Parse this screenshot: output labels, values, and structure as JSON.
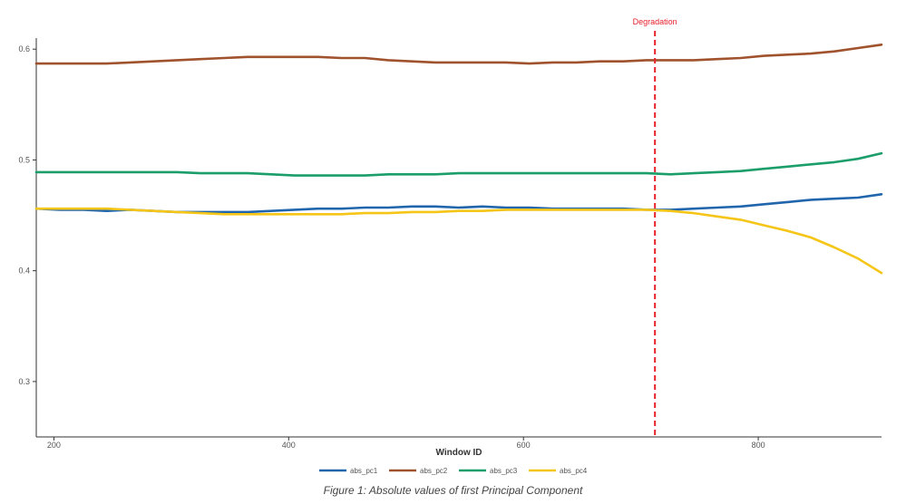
{
  "chart_data": {
    "type": "line",
    "xlabel": "Window ID",
    "ylabel": "",
    "xlim": [
      185,
      905
    ],
    "ylim": [
      0.25,
      0.61
    ],
    "x_ticks": [
      200,
      400,
      600,
      800
    ],
    "y_ticks": [
      0.3,
      0.4,
      0.5,
      0.6
    ],
    "grid": false,
    "legend_position": "bottom",
    "x": [
      185,
      205,
      225,
      245,
      265,
      285,
      305,
      325,
      345,
      365,
      385,
      405,
      425,
      445,
      465,
      485,
      505,
      525,
      545,
      565,
      585,
      605,
      625,
      645,
      665,
      685,
      705,
      725,
      745,
      765,
      785,
      805,
      825,
      845,
      865,
      885,
      905
    ],
    "series": [
      {
        "name": "abs_pc1",
        "color": "#2166ac",
        "values": [
          0.456,
          0.455,
          0.455,
          0.454,
          0.455,
          0.454,
          0.453,
          0.453,
          0.453,
          0.453,
          0.454,
          0.455,
          0.456,
          0.456,
          0.457,
          0.457,
          0.458,
          0.458,
          0.457,
          0.458,
          0.457,
          0.457,
          0.456,
          0.456,
          0.456,
          0.456,
          0.455,
          0.455,
          0.456,
          0.457,
          0.458,
          0.46,
          0.462,
          0.464,
          0.465,
          0.466,
          0.469
        ]
      },
      {
        "name": "abs_pc2",
        "color": "#a0522d",
        "values": [
          0.587,
          0.587,
          0.587,
          0.587,
          0.588,
          0.589,
          0.59,
          0.591,
          0.592,
          0.593,
          0.593,
          0.593,
          0.593,
          0.592,
          0.592,
          0.59,
          0.589,
          0.588,
          0.588,
          0.588,
          0.588,
          0.587,
          0.588,
          0.588,
          0.589,
          0.589,
          0.59,
          0.59,
          0.59,
          0.591,
          0.592,
          0.594,
          0.595,
          0.596,
          0.598,
          0.601,
          0.604
        ]
      },
      {
        "name": "abs_pc3",
        "color": "#1b9e6a",
        "values": [
          0.489,
          0.489,
          0.489,
          0.489,
          0.489,
          0.489,
          0.489,
          0.488,
          0.488,
          0.488,
          0.487,
          0.486,
          0.486,
          0.486,
          0.486,
          0.487,
          0.487,
          0.487,
          0.488,
          0.488,
          0.488,
          0.488,
          0.488,
          0.488,
          0.488,
          0.488,
          0.488,
          0.487,
          0.488,
          0.489,
          0.49,
          0.492,
          0.494,
          0.496,
          0.498,
          0.501,
          0.506
        ]
      },
      {
        "name": "abs_pc4",
        "color": "#f5c518",
        "values": [
          0.456,
          0.456,
          0.456,
          0.456,
          0.455,
          0.454,
          0.453,
          0.452,
          0.451,
          0.451,
          0.451,
          0.451,
          0.451,
          0.451,
          0.452,
          0.452,
          0.453,
          0.453,
          0.454,
          0.454,
          0.455,
          0.455,
          0.455,
          0.455,
          0.455,
          0.455,
          0.455,
          0.454,
          0.452,
          0.449,
          0.446,
          0.441,
          0.436,
          0.43,
          0.421,
          0.411,
          0.398
        ]
      }
    ],
    "annotations": [
      {
        "type": "vline",
        "x": 712,
        "label": "Degradation",
        "color": "#e8202a"
      }
    ]
  },
  "caption": "Figure 1: Absolute values of first Principal Component"
}
